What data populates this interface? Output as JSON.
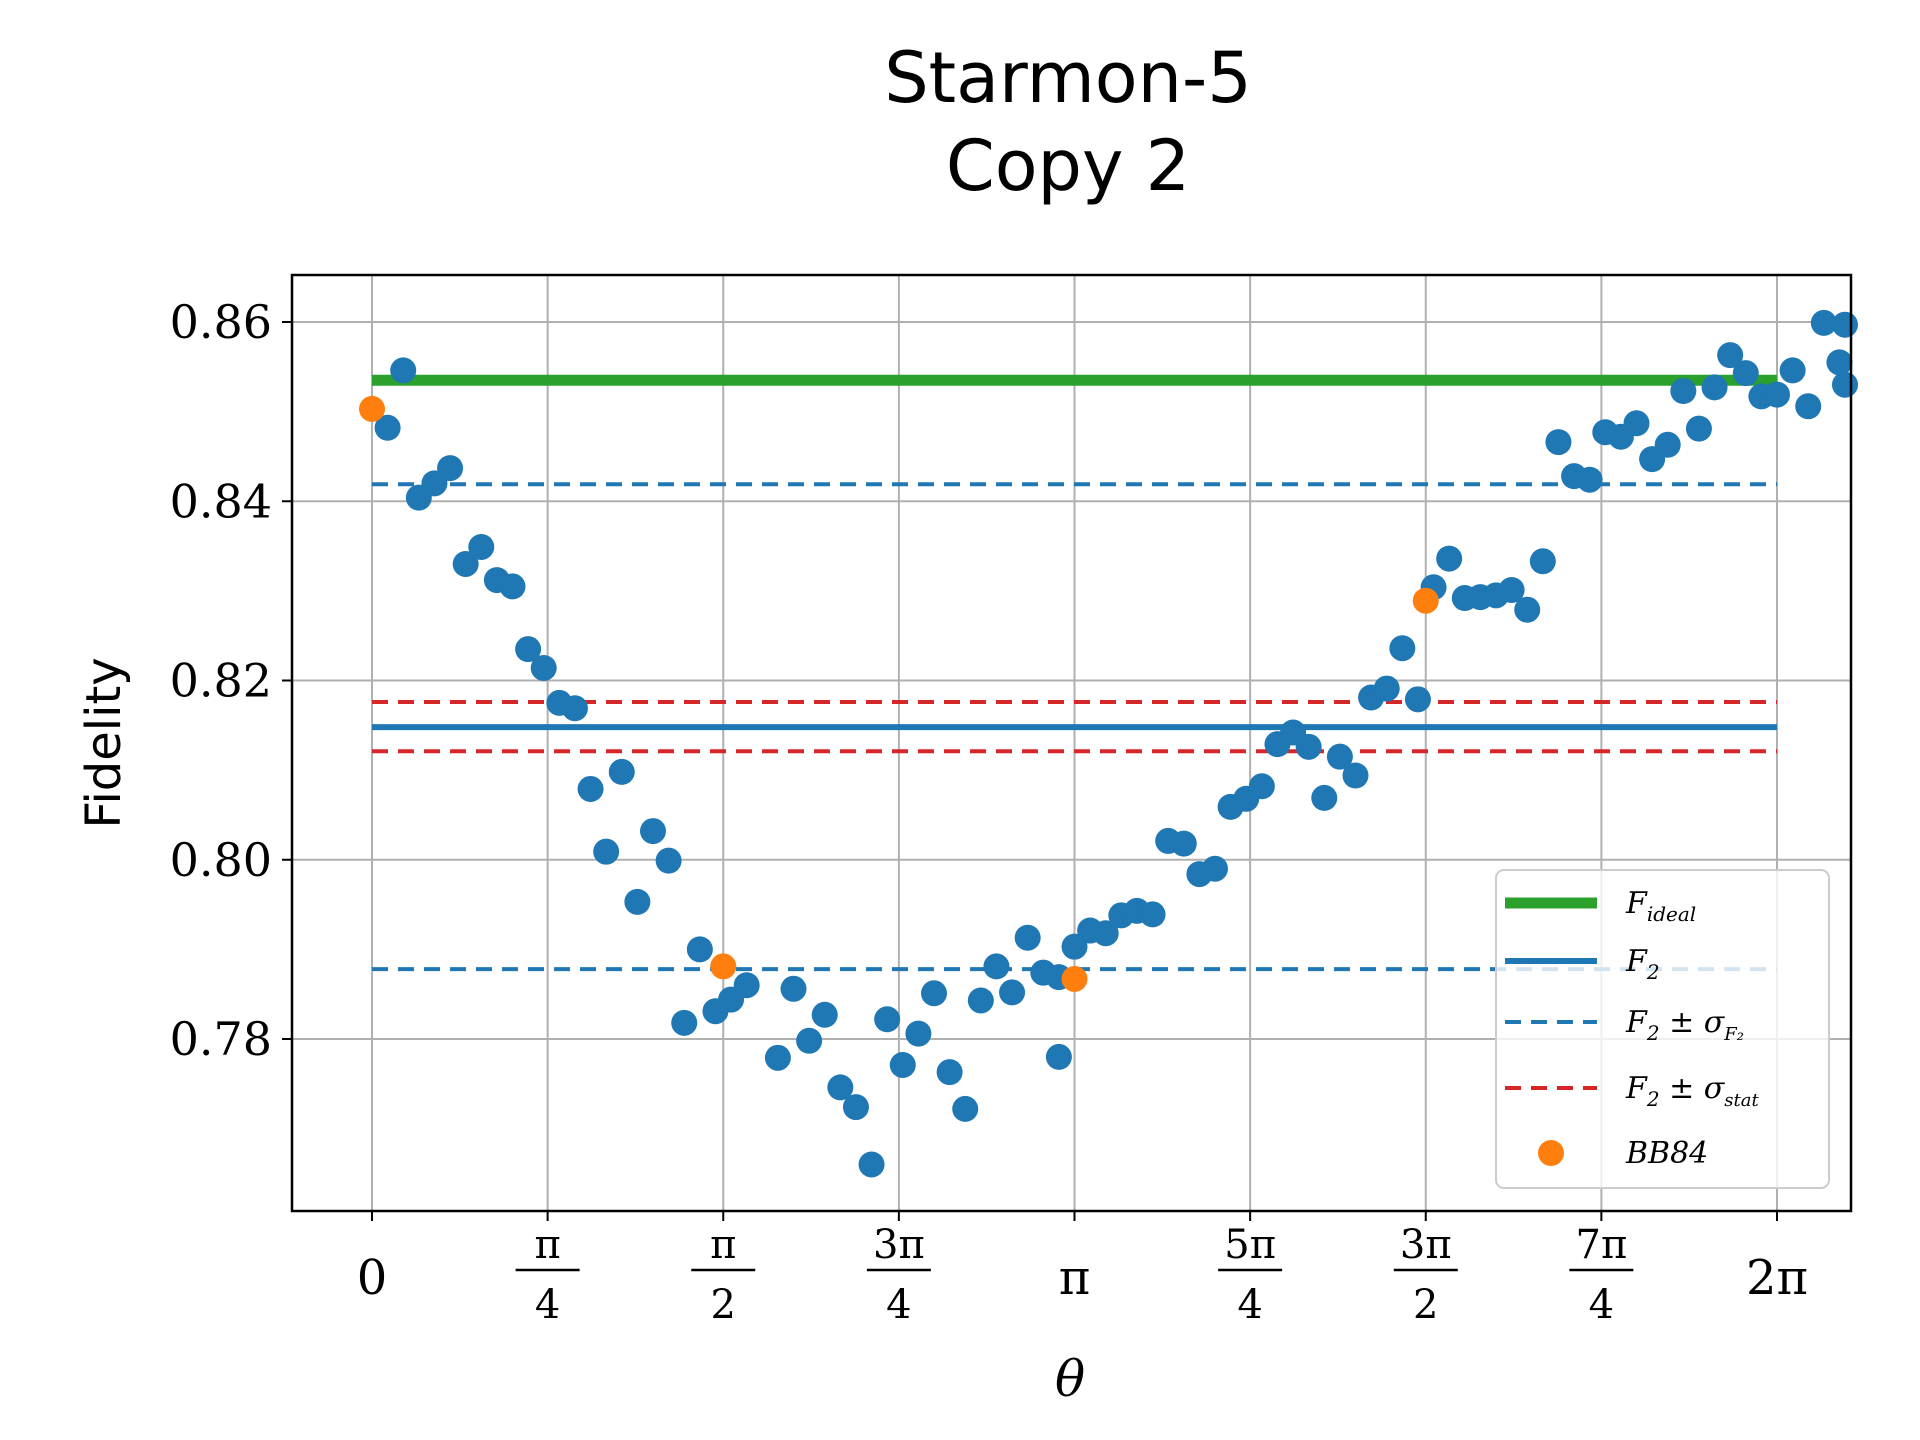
{
  "chart_data": {
    "type": "scatter",
    "title": "Starmon-5",
    "subtitle": "Copy 2",
    "xlabel": "θ",
    "ylabel": "Fidelity",
    "ylim": [
      0.7605,
      0.8655
    ],
    "xlim": [
      -0.36,
      6.64
    ],
    "grid": true,
    "legend_position": "bottom-right",
    "x_ticks": [
      {
        "value": 0,
        "num": "0",
        "den": ""
      },
      {
        "value": 0.7854,
        "num": "π",
        "den": "4"
      },
      {
        "value": 1.5708,
        "num": "π",
        "den": "2"
      },
      {
        "value": 2.3562,
        "num": "3π",
        "den": "4"
      },
      {
        "value": 3.1416,
        "num": "π",
        "den": ""
      },
      {
        "value": 3.927,
        "num": "5π",
        "den": "4"
      },
      {
        "value": 4.7124,
        "num": "3π",
        "den": "2"
      },
      {
        "value": 5.4978,
        "num": "7π",
        "den": "4"
      },
      {
        "value": 6.2832,
        "num": "2π",
        "den": ""
      }
    ],
    "y_ticks": [
      {
        "value": 0.78,
        "label": "0.78"
      },
      {
        "value": 0.8,
        "label": "0.80"
      },
      {
        "value": 0.82,
        "label": "0.82"
      },
      {
        "value": 0.84,
        "label": "0.84"
      },
      {
        "value": 0.86,
        "label": "0.86"
      }
    ],
    "lines": [
      {
        "name": "F_ideal",
        "legend_main": "F",
        "legend_sub": "ideal",
        "y": 0.8535,
        "color": "#2ca02c",
        "style": "solid",
        "width": 11
      },
      {
        "name": "F_2",
        "legend_main": "F",
        "legend_sub": "2",
        "y": 0.8148,
        "color": "#1f77b4",
        "style": "solid",
        "width": 6
      },
      {
        "name": "F_2 ± σ_F2",
        "legend_main": "F",
        "legend_sub": "2",
        "legend_rest": " ± σ",
        "legend_rest_sub": "F₂",
        "y_values": [
          0.8419,
          0.7878
        ],
        "color": "#1f77b4",
        "style": "dashed",
        "width": 4
      },
      {
        "name": "F_2 ± σ_stat",
        "legend_main": "F",
        "legend_sub": "2",
        "legend_rest": " ± σ",
        "legend_rest_sub": "stat",
        "y_values": [
          0.8176,
          0.8121
        ],
        "color": "#d62728",
        "style": "dashed",
        "width": 4
      }
    ],
    "series": [
      {
        "name": "fidelity",
        "color": "#1f77b4",
        "points": [
          [
            0.0698,
            0.8482
          ],
          [
            0.1396,
            0.8546
          ],
          [
            0.2094,
            0.8404
          ],
          [
            0.2793,
            0.842
          ],
          [
            0.3491,
            0.8437
          ],
          [
            0.4189,
            0.833
          ],
          [
            0.4887,
            0.8349
          ],
          [
            0.5585,
            0.8312
          ],
          [
            0.6283,
            0.8305
          ],
          [
            0.6981,
            0.8235
          ],
          [
            0.7679,
            0.8214
          ],
          [
            0.8378,
            0.8175
          ],
          [
            0.9076,
            0.8169
          ],
          [
            0.9774,
            0.8079
          ],
          [
            1.0472,
            0.8009
          ],
          [
            1.117,
            0.8098
          ],
          [
            1.1868,
            0.7953
          ],
          [
            1.2566,
            0.8032
          ],
          [
            1.3265,
            0.7999
          ],
          [
            1.3963,
            0.7818
          ],
          [
            1.4661,
            0.79
          ],
          [
            1.5359,
            0.7831
          ],
          [
            1.6057,
            0.7844
          ],
          [
            1.6755,
            0.786
          ],
          [
            1.8151,
            0.7779
          ],
          [
            1.885,
            0.7856
          ],
          [
            1.9548,
            0.7798
          ],
          [
            2.0246,
            0.7827
          ],
          [
            2.0944,
            0.7746
          ],
          [
            2.1642,
            0.7724
          ],
          [
            2.234,
            0.766
          ],
          [
            2.3038,
            0.7822
          ],
          [
            2.3736,
            0.7771
          ],
          [
            2.4435,
            0.7806
          ],
          [
            2.5133,
            0.7851
          ],
          [
            2.5831,
            0.7763
          ],
          [
            2.6529,
            0.7722
          ],
          [
            2.7227,
            0.7843
          ],
          [
            2.7925,
            0.7881
          ],
          [
            2.8623,
            0.7852
          ],
          [
            2.9322,
            0.7913
          ],
          [
            3.002,
            0.7874
          ],
          [
            3.0718,
            0.7869
          ],
          [
            3.1416,
            0.7903
          ],
          [
            3.2114,
            0.7921
          ],
          [
            3.2812,
            0.7918
          ],
          [
            3.351,
            0.7938
          ],
          [
            3.0718,
            0.778
          ],
          [
            3.4208,
            0.7943
          ],
          [
            3.4907,
            0.7939
          ],
          [
            3.5605,
            0.8021
          ],
          [
            3.6303,
            0.8018
          ],
          [
            3.7001,
            0.7984
          ],
          [
            3.7699,
            0.799
          ],
          [
            3.8397,
            0.8059
          ],
          [
            3.9095,
            0.8068
          ],
          [
            3.9794,
            0.8082
          ],
          [
            4.0492,
            0.8129
          ],
          [
            4.119,
            0.8142
          ],
          [
            4.1888,
            0.8126
          ],
          [
            4.2586,
            0.8069
          ],
          [
            4.3284,
            0.8115
          ],
          [
            4.3982,
            0.8094
          ],
          [
            4.468,
            0.8181
          ],
          [
            4.5379,
            0.8191
          ],
          [
            4.6077,
            0.8236
          ],
          [
            4.6775,
            0.8179
          ],
          [
            4.7473,
            0.8304
          ],
          [
            4.8171,
            0.8336
          ],
          [
            4.8869,
            0.8292
          ],
          [
            4.9567,
            0.8293
          ],
          [
            5.0265,
            0.8295
          ],
          [
            5.0964,
            0.8301
          ],
          [
            5.1662,
            0.8279
          ],
          [
            5.236,
            0.8333
          ],
          [
            5.3058,
            0.8466
          ],
          [
            5.3756,
            0.8428
          ],
          [
            5.4454,
            0.8424
          ],
          [
            5.5152,
            0.8477
          ],
          [
            5.5851,
            0.8472
          ],
          [
            5.6549,
            0.8487
          ],
          [
            5.7247,
            0.8447
          ],
          [
            5.7945,
            0.8463
          ],
          [
            5.8643,
            0.8523
          ],
          [
            5.9341,
            0.8481
          ],
          [
            6.0039,
            0.8527
          ],
          [
            6.0737,
            0.8563
          ],
          [
            6.1436,
            0.8543
          ],
          [
            6.2134,
            0.8517
          ],
          [
            6.2832,
            0.8519
          ],
          [
            6.353,
            0.8546
          ],
          [
            6.4228,
            0.8506
          ],
          [
            6.4926,
            0.8599
          ],
          [
            6.5624,
            0.8555
          ],
          [
            6.6322,
            0.853
          ],
          [
            6.7021,
            0.8597
          ]
        ]
      },
      {
        "name": "BB84",
        "color": "#ff7f0e",
        "points": [
          [
            0,
            0.8503
          ],
          [
            1.5708,
            0.7881
          ],
          [
            3.1416,
            0.7867
          ],
          [
            4.7124,
            0.8289
          ]
        ]
      }
    ]
  }
}
